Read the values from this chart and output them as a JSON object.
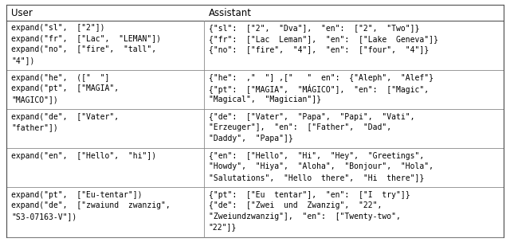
{
  "col_headers": [
    "User",
    "Assistant"
  ],
  "rows": [
    [
      "expand(\"sl\",  [\"2\"])\nexpand(\"fr\",  [\"Lac\",  \"LEMAN\"])\nexpand(\"no\",  [\"fire\",  \"tall\",\n\"4\"])",
      "{\"sl\":  [\"2\",  \"Dva\"],  \"en\":  [\"2\",  \"Two\"]}\n{\"fr\":  [\"Lac  Leman\"],  \"en\":  [\"Lake  Geneva\"]}\n{\"no\":  [\"fire\",  \"4\"],  \"en\":  [\"four\",  \"4\"]}"
    ],
    [
      "expand(\"he\",  ([\"  \"]\nexpand(\"pt\",  [\"MAGIA\",\n\"MAGICO\"])",
      "{\"he\":  ,\"  \"] ,[\"   \"  en\":  {\"Aleph\",  \"Alef\"}\n{\"pt\":  [\"MAGIA\",  \"MÁGICO\"],  \"en\":  [\"Magic\",\n\"Magical\",  \"Magician\"]}"
    ],
    [
      "expand(\"de\",  [\"Vater\",\n\"father\"])",
      "{\"de\":  [\"Vater\",  \"Papa\",  \"Papi\",  \"Vati\",\n\"Erzeuger\"],  \"en\":  [\"Father\",  \"Dad\",\n\"Daddy\",  \"Papa\"]}"
    ],
    [
      "expand(\"en\",  [\"Hello\",  \"hi\"])",
      "{\"en\":  [\"Hello\",  \"Hi\",  \"Hey\",  \"Greetings\",\n\"Howdy\",  \"Hiya\",  \"Aloha\",  \"Bonjour\",  \"Hola\",\n\"Salutations\",  \"Hello  there\",  \"Hi  there\"]}"
    ],
    [
      "expand(\"pt\",  [\"Eu-tentar\"])\nexpand(\"de\",  [\"zwaiund  zwanzig\",\n\"S3-07163-V\"])",
      "{\"pt\":  [\"Eu  tentar\"],  \"en\":  [\"I  try\"]}\n{\"de\":  [\"Zwei  und  Zwanzig\",  \"22\",\n\"Zweiundzwanzig\"],  \"en\":  [\"Twenty-two\",\n\"22\"]}"
    ]
  ],
  "col_split": 0.397,
  "font_size": 7.0,
  "header_font_size": 8.5,
  "fig_width": 6.4,
  "fig_height": 3.04,
  "bg_color": "#ffffff",
  "text_color": "#000000",
  "border_color": "#888888"
}
